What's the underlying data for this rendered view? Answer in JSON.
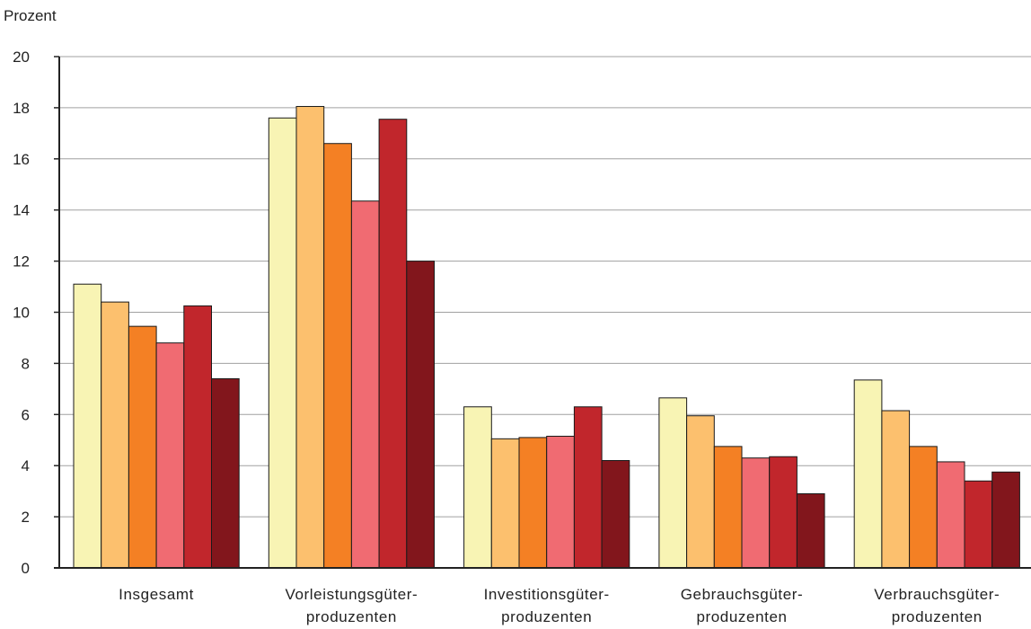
{
  "chart_data": {
    "type": "bar",
    "ylabel": "Prozent",
    "xlabel": "",
    "ylim": [
      0,
      20
    ],
    "yticks": [
      0,
      2,
      4,
      6,
      8,
      10,
      12,
      14,
      16,
      18,
      20
    ],
    "grid": true,
    "legend": "none",
    "categories": [
      [
        "Insgesamt"
      ],
      [
        "Vorleistungsgüter-",
        "produzenten"
      ],
      [
        "Investitionsgüter-",
        "produzenten"
      ],
      [
        "Gebrauchsgüter-",
        "produzenten"
      ],
      [
        "Verbrauchsgüter-",
        "produzenten"
      ]
    ],
    "series": [
      {
        "color": "#f8f4b4",
        "values": [
          11.1,
          17.6,
          6.3,
          6.65,
          7.35
        ]
      },
      {
        "color": "#fcc06e",
        "values": [
          10.4,
          18.05,
          5.05,
          5.95,
          6.15
        ]
      },
      {
        "color": "#f48024",
        "values": [
          9.45,
          16.6,
          5.1,
          4.75,
          4.75
        ]
      },
      {
        "color": "#f06b72",
        "values": [
          8.8,
          14.35,
          5.15,
          4.3,
          4.15
        ]
      },
      {
        "color": "#c1262c",
        "values": [
          10.25,
          17.55,
          6.3,
          4.35,
          3.4
        ]
      },
      {
        "color": "#82161c",
        "values": [
          7.4,
          12.0,
          4.2,
          2.9,
          3.75
        ]
      }
    ]
  }
}
